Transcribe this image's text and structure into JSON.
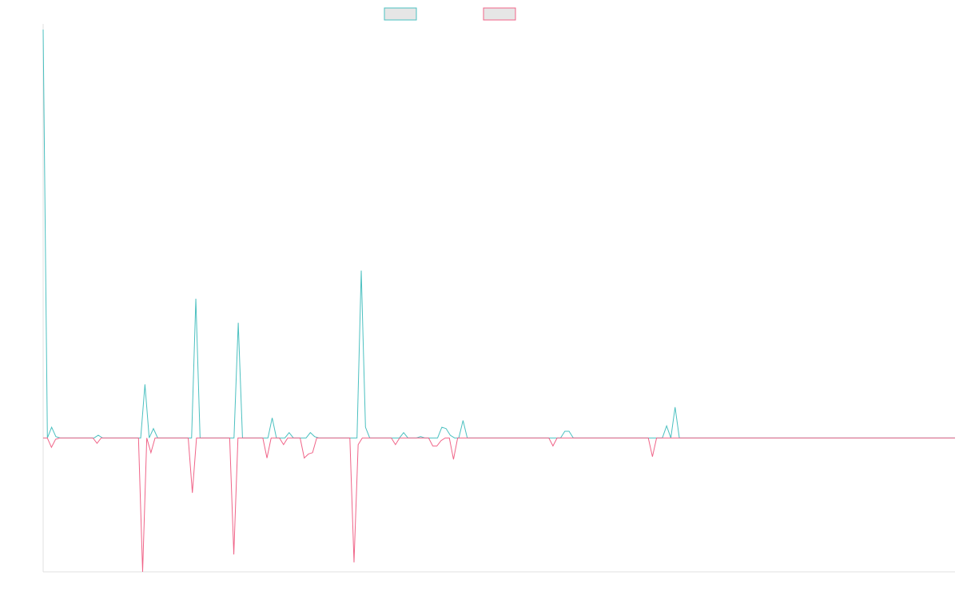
{
  "chart_data": {
    "type": "line",
    "title": "",
    "xlabel": "",
    "ylabel": "",
    "ylim": [
      -1.0,
      3.05
    ],
    "legend_position": "top-center",
    "grid": false,
    "series": [
      {
        "color": "#4bc0c0",
        "values": [
          3.05,
          0.0,
          0.08,
          0.01,
          0,
          0,
          0,
          0,
          0,
          0,
          0,
          0,
          0,
          0.02,
          0,
          0,
          0,
          0,
          0,
          0,
          0,
          0,
          0,
          0,
          0.4,
          0,
          0.07,
          0,
          0,
          0,
          0,
          0,
          0,
          0,
          0,
          0,
          1.04,
          0,
          0,
          0,
          0,
          0,
          0,
          0,
          0,
          0,
          0.86,
          0,
          0,
          0,
          0,
          0,
          0,
          0,
          0.15,
          0,
          0,
          0,
          0.04,
          0,
          0,
          0,
          0,
          0.04,
          0.01,
          0,
          0,
          0,
          0,
          0,
          0,
          0,
          0,
          0,
          0,
          1.25,
          0.08,
          0,
          0,
          0,
          0,
          0,
          0,
          0,
          0,
          0.04,
          0,
          0,
          0,
          0.01,
          0,
          0,
          0,
          0,
          0.08,
          0.07,
          0.02,
          0,
          0,
          0.13,
          0,
          0,
          0,
          0,
          0,
          0,
          0,
          0,
          0,
          0,
          0,
          0,
          0,
          0,
          0,
          0,
          0,
          0,
          0,
          0,
          0,
          0,
          0,
          0.05,
          0.05,
          0,
          0,
          0,
          0,
          0,
          0,
          0,
          0,
          0,
          0,
          0,
          0,
          0,
          0,
          0,
          0,
          0,
          0,
          0,
          0,
          0,
          0,
          0.09,
          0,
          0.23,
          0,
          0,
          0,
          0,
          0,
          0,
          0,
          0,
          0,
          0,
          0,
          0,
          0,
          0,
          0,
          0,
          0,
          0,
          0,
          0,
          0,
          0,
          0,
          0,
          0,
          0,
          0,
          0,
          0,
          0,
          0,
          0,
          0,
          0,
          0,
          0,
          0,
          0,
          0,
          0,
          0,
          0,
          0,
          0,
          0,
          0,
          0,
          0,
          0,
          0,
          0,
          0,
          0,
          0,
          0,
          0,
          0,
          0,
          0,
          0,
          0,
          0,
          0,
          0,
          0,
          0
        ]
      },
      {
        "color": "#f06488",
        "values": [
          0,
          0,
          -0.07,
          -0.01,
          0,
          0,
          0,
          0,
          0,
          0,
          0,
          0,
          0,
          -0.04,
          0,
          0,
          0,
          0,
          0,
          0,
          0,
          0,
          0,
          0,
          -1.0,
          0,
          -0.11,
          0,
          0,
          0,
          0,
          0,
          0,
          0,
          0,
          0,
          -0.41,
          0,
          0,
          0,
          0,
          0,
          0,
          0,
          0,
          0,
          -0.87,
          0,
          0,
          0,
          0,
          0,
          0,
          0,
          -0.15,
          0,
          0,
          0,
          -0.05,
          0,
          0,
          0,
          0,
          -0.15,
          -0.12,
          -0.11,
          0,
          0,
          0,
          0,
          0,
          0,
          0,
          0,
          0,
          -0.93,
          -0.05,
          0,
          0,
          0,
          0,
          0,
          0,
          0,
          0,
          -0.05,
          0,
          0,
          0,
          0,
          0,
          0,
          0,
          0,
          -0.06,
          -0.06,
          -0.02,
          0,
          0,
          -0.16,
          0,
          0,
          0,
          0,
          0,
          0,
          0,
          0,
          0,
          0,
          0,
          0,
          0,
          0,
          0,
          0,
          0,
          0,
          0,
          0,
          0,
          0,
          0,
          -0.06,
          0,
          0,
          0,
          0,
          0,
          0,
          0,
          0,
          0,
          0,
          0,
          0,
          0,
          0,
          0,
          0,
          0,
          0,
          0,
          0,
          0,
          0,
          0,
          -0.14,
          0,
          0,
          0,
          0,
          0,
          0,
          0,
          0,
          0,
          0,
          0,
          0,
          0,
          0,
          0,
          0,
          0,
          0,
          0,
          0,
          0,
          0,
          0,
          0,
          0,
          0,
          0,
          0,
          0,
          0,
          0,
          0,
          0,
          0,
          0,
          0,
          0,
          0,
          0,
          0,
          0,
          0,
          0,
          0,
          0,
          0,
          0,
          0,
          0,
          0,
          0,
          0,
          0,
          0,
          0,
          0,
          0,
          0,
          0,
          0,
          0,
          0,
          0,
          0,
          0,
          0,
          0,
          0,
          0,
          0,
          0,
          0,
          0
        ]
      }
    ]
  }
}
